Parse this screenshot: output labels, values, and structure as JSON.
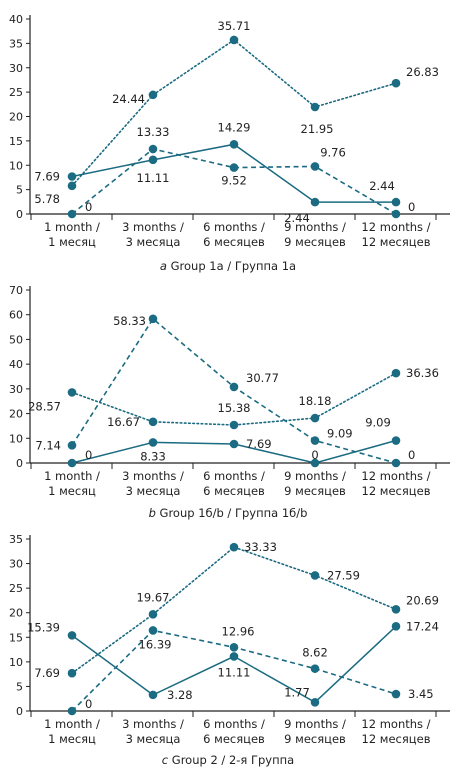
{
  "colors": {
    "series": "#1b6b82",
    "axis": "#222222",
    "text": "#222222"
  },
  "chart_data": [
    {
      "type": "line",
      "caption": {
        "letter": "a",
        "text": "Group 1a / Группа 1a"
      },
      "categories": [
        [
          "1 month /",
          "1 месяц"
        ],
        [
          "3 months /",
          "3 месяца"
        ],
        [
          "6 months /",
          "6 месяцев"
        ],
        [
          "9 months /",
          "9 месяцев"
        ],
        [
          "12 months /",
          "12 месяцев"
        ]
      ],
      "ylim": [
        0,
        40
      ],
      "yticks": [
        0,
        5,
        10,
        15,
        20,
        25,
        30,
        35,
        40
      ],
      "series": [
        {
          "style": "dotted",
          "values": [
            5.78,
            24.44,
            35.71,
            21.95,
            26.83
          ]
        },
        {
          "style": "dashed",
          "values": [
            0,
            13.33,
            9.52,
            9.76,
            0
          ]
        },
        {
          "style": "solid",
          "values": [
            7.69,
            11.11,
            14.29,
            2.44,
            2.44
          ]
        }
      ],
      "labels": [
        {
          "text": "5.78",
          "x": 0,
          "y": 5.78,
          "dx": -12,
          "dy": 17,
          "anchor": "end"
        },
        {
          "text": "7.69",
          "x": 0,
          "y": 7.69,
          "dx": -12,
          "dy": 4,
          "anchor": "end"
        },
        {
          "text": "0",
          "x": 0,
          "y": 0,
          "dx": 13,
          "dy": -3,
          "anchor": "start"
        },
        {
          "text": "24.44",
          "x": 1,
          "y": 24.44,
          "dx": -8,
          "dy": 8,
          "anchor": "end"
        },
        {
          "text": "13.33",
          "x": 1,
          "y": 13.33,
          "dx": 0,
          "dy": -13,
          "anchor": "middle"
        },
        {
          "text": "11.11",
          "x": 1,
          "y": 11.11,
          "dx": 0,
          "dy": 22,
          "anchor": "middle"
        },
        {
          "text": "35.71",
          "x": 2,
          "y": 35.71,
          "dx": 0,
          "dy": -10,
          "anchor": "middle"
        },
        {
          "text": "14.29",
          "x": 2,
          "y": 14.29,
          "dx": 0,
          "dy": -13,
          "anchor": "middle"
        },
        {
          "text": "9.52",
          "x": 2,
          "y": 9.52,
          "dx": 0,
          "dy": 17,
          "anchor": "middle"
        },
        {
          "text": "21.95",
          "x": 3,
          "y": 21.95,
          "dx": 2,
          "dy": 26,
          "anchor": "middle"
        },
        {
          "text": "9.76",
          "x": 3,
          "y": 9.76,
          "dx": 18,
          "dy": -10,
          "anchor": "middle"
        },
        {
          "text": "2.44",
          "x": 3,
          "y": 2.44,
          "dx": -18,
          "dy": 20,
          "anchor": "middle"
        },
        {
          "text": "26.83",
          "x": 4,
          "y": 26.83,
          "dx": 10,
          "dy": -7,
          "anchor": "start"
        },
        {
          "text": "2.44",
          "x": 4,
          "y": 2.44,
          "dx": -14,
          "dy": -12,
          "anchor": "middle"
        },
        {
          "text": "0",
          "x": 4,
          "y": 0,
          "dx": 12,
          "dy": -3,
          "anchor": "start"
        }
      ]
    },
    {
      "type": "line",
      "caption": {
        "letter": "b",
        "text": "Group 1б/b / Группа 1б/b"
      },
      "categories": [
        [
          "1 month /",
          "1 месяц"
        ],
        [
          "3 months /",
          "3 месяца"
        ],
        [
          "6 months /",
          "6 месяцев"
        ],
        [
          "9 months /",
          "9 месяцев"
        ],
        [
          "12 months /",
          "12 месяцев"
        ]
      ],
      "ylim": [
        0,
        70
      ],
      "yticks": [
        0,
        10,
        20,
        30,
        40,
        50,
        60,
        70
      ],
      "series": [
        {
          "style": "dotted",
          "values": [
            28.57,
            16.67,
            15.38,
            18.18,
            36.36
          ]
        },
        {
          "style": "dashed",
          "values": [
            7.14,
            58.33,
            30.77,
            9.09,
            0
          ]
        },
        {
          "style": "solid",
          "values": [
            0,
            8.33,
            7.69,
            0,
            9.09
          ]
        }
      ],
      "labels": [
        {
          "text": "28.57",
          "x": 0,
          "y": 28.57,
          "dx": -11,
          "dy": 18,
          "anchor": "end"
        },
        {
          "text": "7.14",
          "x": 0,
          "y": 7.14,
          "dx": -11,
          "dy": 4,
          "anchor": "end"
        },
        {
          "text": "0",
          "x": 0,
          "y": 0,
          "dx": 13,
          "dy": -4,
          "anchor": "start"
        },
        {
          "text": "58.33",
          "x": 1,
          "y": 58.33,
          "dx": -7,
          "dy": 6,
          "anchor": "end"
        },
        {
          "text": "16.67",
          "x": 1,
          "y": 16.67,
          "dx": -13,
          "dy": 4,
          "anchor": "end"
        },
        {
          "text": "8.33",
          "x": 1,
          "y": 8.33,
          "dx": 0,
          "dy": 18,
          "anchor": "middle"
        },
        {
          "text": "30.77",
          "x": 2,
          "y": 30.77,
          "dx": 12,
          "dy": -5,
          "anchor": "start"
        },
        {
          "text": "15.38",
          "x": 2,
          "y": 15.38,
          "dx": 0,
          "dy": -13,
          "anchor": "middle"
        },
        {
          "text": "7.69",
          "x": 2,
          "y": 7.69,
          "dx": 12,
          "dy": 4,
          "anchor": "start"
        },
        {
          "text": "18.18",
          "x": 3,
          "y": 18.18,
          "dx": 0,
          "dy": -13,
          "anchor": "middle"
        },
        {
          "text": "9.09",
          "x": 3,
          "y": 9.09,
          "dx": 12,
          "dy": -3,
          "anchor": "start"
        },
        {
          "text": "0",
          "x": 3,
          "y": 0,
          "dx": 0,
          "dy": -4,
          "anchor": "middle"
        },
        {
          "text": "36.36",
          "x": 4,
          "y": 36.36,
          "dx": 10,
          "dy": 4,
          "anchor": "start"
        },
        {
          "text": "9.09",
          "x": 4,
          "y": 9.09,
          "dx": -18,
          "dy": -14,
          "anchor": "middle"
        },
        {
          "text": "0",
          "x": 4,
          "y": 0,
          "dx": 12,
          "dy": -4,
          "anchor": "start"
        }
      ]
    },
    {
      "type": "line",
      "caption": {
        "letter": "c",
        "text": "Group 2 / 2-я Группа"
      },
      "categories": [
        [
          "1 month /",
          "1 месяц"
        ],
        [
          "3 months /",
          "3 месяца"
        ],
        [
          "6 months /",
          "6 месяцев"
        ],
        [
          "9 months /",
          "9 месяцев"
        ],
        [
          "12 months /",
          "12 месяцев"
        ]
      ],
      "ylim": [
        0,
        35
      ],
      "yticks": [
        0,
        5,
        10,
        15,
        20,
        25,
        30,
        35
      ],
      "series": [
        {
          "style": "dotted",
          "values": [
            7.69,
            19.67,
            33.33,
            27.59,
            20.69
          ]
        },
        {
          "style": "dashed",
          "values": [
            0,
            16.39,
            12.96,
            8.62,
            3.45
          ]
        },
        {
          "style": "solid",
          "values": [
            15.39,
            3.28,
            11.11,
            1.77,
            17.24
          ]
        }
      ],
      "labels": [
        {
          "text": "15.39",
          "x": 0,
          "y": 15.39,
          "dx": -12,
          "dy": -4,
          "anchor": "end"
        },
        {
          "text": "7.69",
          "x": 0,
          "y": 7.69,
          "dx": -12,
          "dy": 4,
          "anchor": "end"
        },
        {
          "text": "0",
          "x": 0,
          "y": 0,
          "dx": 13,
          "dy": -3,
          "anchor": "start"
        },
        {
          "text": "19.67",
          "x": 1,
          "y": 19.67,
          "dx": 0,
          "dy": -13,
          "anchor": "middle"
        },
        {
          "text": "16.39",
          "x": 1,
          "y": 16.39,
          "dx": 2,
          "dy": 18,
          "anchor": "middle"
        },
        {
          "text": "3.28",
          "x": 1,
          "y": 3.28,
          "dx": 14,
          "dy": 4,
          "anchor": "start"
        },
        {
          "text": "33.33",
          "x": 2,
          "y": 33.33,
          "dx": 10,
          "dy": 4,
          "anchor": "start"
        },
        {
          "text": "12.96",
          "x": 2,
          "y": 12.96,
          "dx": 4,
          "dy": -12,
          "anchor": "middle"
        },
        {
          "text": "11.11",
          "x": 2,
          "y": 11.11,
          "dx": 0,
          "dy": 20,
          "anchor": "middle"
        },
        {
          "text": "27.59",
          "x": 3,
          "y": 27.59,
          "dx": 12,
          "dy": 4,
          "anchor": "start"
        },
        {
          "text": "8.62",
          "x": 3,
          "y": 8.62,
          "dx": 0,
          "dy": -12,
          "anchor": "middle"
        },
        {
          "text": "1.77",
          "x": 3,
          "y": 1.77,
          "dx": -18,
          "dy": -6,
          "anchor": "middle"
        },
        {
          "text": "20.69",
          "x": 4,
          "y": 20.69,
          "dx": 10,
          "dy": -5,
          "anchor": "start"
        },
        {
          "text": "17.24",
          "x": 4,
          "y": 17.24,
          "dx": 10,
          "dy": 4,
          "anchor": "start"
        },
        {
          "text": "3.45",
          "x": 4,
          "y": 3.45,
          "dx": 12,
          "dy": 4,
          "anchor": "start"
        }
      ]
    }
  ]
}
